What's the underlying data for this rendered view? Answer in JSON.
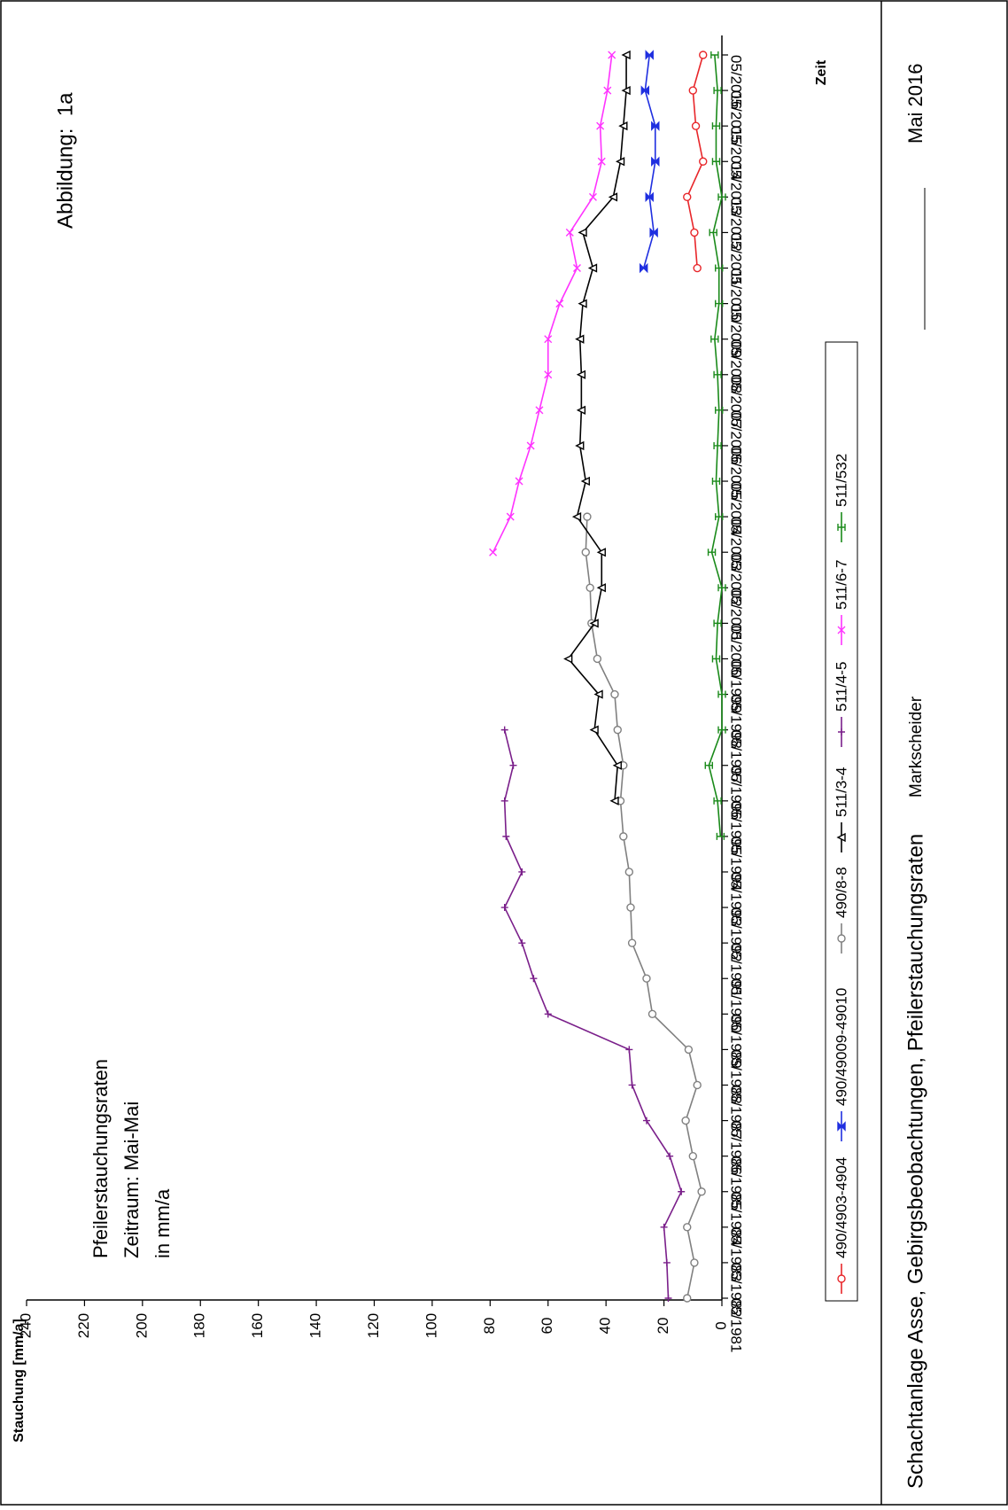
{
  "chart_data": {
    "type": "line",
    "title": "Abbildung:  1a",
    "annotations": [
      "Pfeilerstauchungsraten",
      "Zeitraum: Mai-Mai",
      "in mm/a"
    ],
    "y_label": "Stauchung [mm/a]",
    "x_label": "Zeit",
    "footer": {
      "text": "Schachtanlage Asse, Gebirgsbeobachtungen, Pfeilerstauchungsraten",
      "role": "Markscheider",
      "date": "Mai 2016"
    },
    "categories": [
      "05/1981",
      "05/1982",
      "05/1983",
      "05/1984",
      "05/1985",
      "05/1986",
      "05/1987",
      "05/1988",
      "05/1989",
      "05/1990",
      "05/1991",
      "05/1992",
      "05/1993",
      "05/1994",
      "05/1995",
      "05/1996",
      "05/1997",
      "05/1998",
      "05/1999",
      "05/2000",
      "05/2001",
      "05/2002",
      "05/2003",
      "05/2004",
      "05/2005",
      "05/2006",
      "05/2007",
      "05/2008",
      "05/2009",
      "05/2010",
      "05/2011",
      "05/2012",
      "05/2013",
      "05/2014",
      "05/2015",
      "05/2016"
    ],
    "ylim": [
      0,
      240
    ],
    "yticks": [
      0,
      20,
      40,
      60,
      80,
      100,
      120,
      140,
      160,
      180,
      200,
      220,
      240
    ],
    "series": [
      {
        "name": "490/4903-4904",
        "color": "#e8262a",
        "marker": "circle",
        "values": [
          null,
          null,
          null,
          null,
          null,
          null,
          null,
          null,
          null,
          null,
          null,
          null,
          null,
          null,
          null,
          null,
          null,
          null,
          null,
          null,
          null,
          null,
          null,
          null,
          null,
          null,
          null,
          null,
          null,
          8.5,
          9.5,
          12,
          6.5,
          9,
          10,
          6.5
        ]
      },
      {
        "name": "490/49009-49010",
        "color": "#1f2fe0",
        "marker": "bowtie",
        "values": [
          null,
          null,
          null,
          null,
          null,
          null,
          null,
          null,
          null,
          null,
          null,
          null,
          null,
          null,
          null,
          null,
          null,
          null,
          null,
          null,
          null,
          null,
          null,
          null,
          null,
          null,
          null,
          null,
          null,
          27,
          23.5,
          25,
          23,
          23,
          26.5,
          25
        ]
      },
      {
        "name": "490/8-8",
        "color": "#808080",
        "marker": "circle",
        "values": [
          12,
          9.5,
          12,
          7,
          10,
          12.5,
          8.5,
          11.5,
          24,
          26,
          31,
          31.5,
          32,
          34,
          35,
          34,
          36,
          37,
          43,
          45,
          45.5,
          47,
          46.5,
          null,
          null,
          null,
          null,
          null,
          null,
          null,
          null,
          null,
          null,
          null,
          null,
          null
        ]
      },
      {
        "name": "511/3-4",
        "color": "#000000",
        "marker": "triangle",
        "values": [
          null,
          null,
          null,
          null,
          null,
          null,
          null,
          null,
          null,
          null,
          null,
          null,
          null,
          null,
          37,
          36,
          44,
          42.5,
          53,
          44,
          41.5,
          41.5,
          50,
          47,
          49,
          48.5,
          48.5,
          49,
          48,
          44.5,
          48,
          37.5,
          35,
          34,
          33,
          33
        ]
      },
      {
        "name": "511/4-5",
        "color": "#7a1f8a",
        "marker": "plus",
        "values": [
          18.5,
          19,
          20,
          14,
          18,
          26,
          31,
          32,
          60,
          65,
          69,
          75,
          69,
          74.5,
          75,
          72,
          75,
          null,
          null,
          null,
          null,
          null,
          null,
          null,
          null,
          null,
          null,
          null,
          null,
          null,
          null,
          null,
          null,
          null,
          null,
          null
        ]
      },
      {
        "name": "511/6-7",
        "color": "#ff33ff",
        "marker": "x",
        "values": [
          null,
          null,
          null,
          null,
          null,
          null,
          null,
          null,
          null,
          null,
          null,
          null,
          null,
          null,
          null,
          null,
          null,
          null,
          null,
          null,
          null,
          79,
          73,
          70,
          66,
          63,
          60,
          60,
          56,
          50,
          52.5,
          44.5,
          41.5,
          42,
          39.5,
          38
        ]
      },
      {
        "name": "511/532",
        "color": "#1a8a1a",
        "marker": "bar",
        "values": [
          null,
          null,
          null,
          null,
          null,
          null,
          null,
          null,
          null,
          null,
          null,
          null,
          null,
          0.5,
          1.5,
          4.5,
          0,
          0,
          2,
          1.5,
          0,
          3.5,
          1,
          2,
          1.5,
          1,
          1.5,
          2.5,
          1,
          1,
          3,
          0,
          2,
          2,
          1.5,
          2.5
        ]
      }
    ]
  }
}
